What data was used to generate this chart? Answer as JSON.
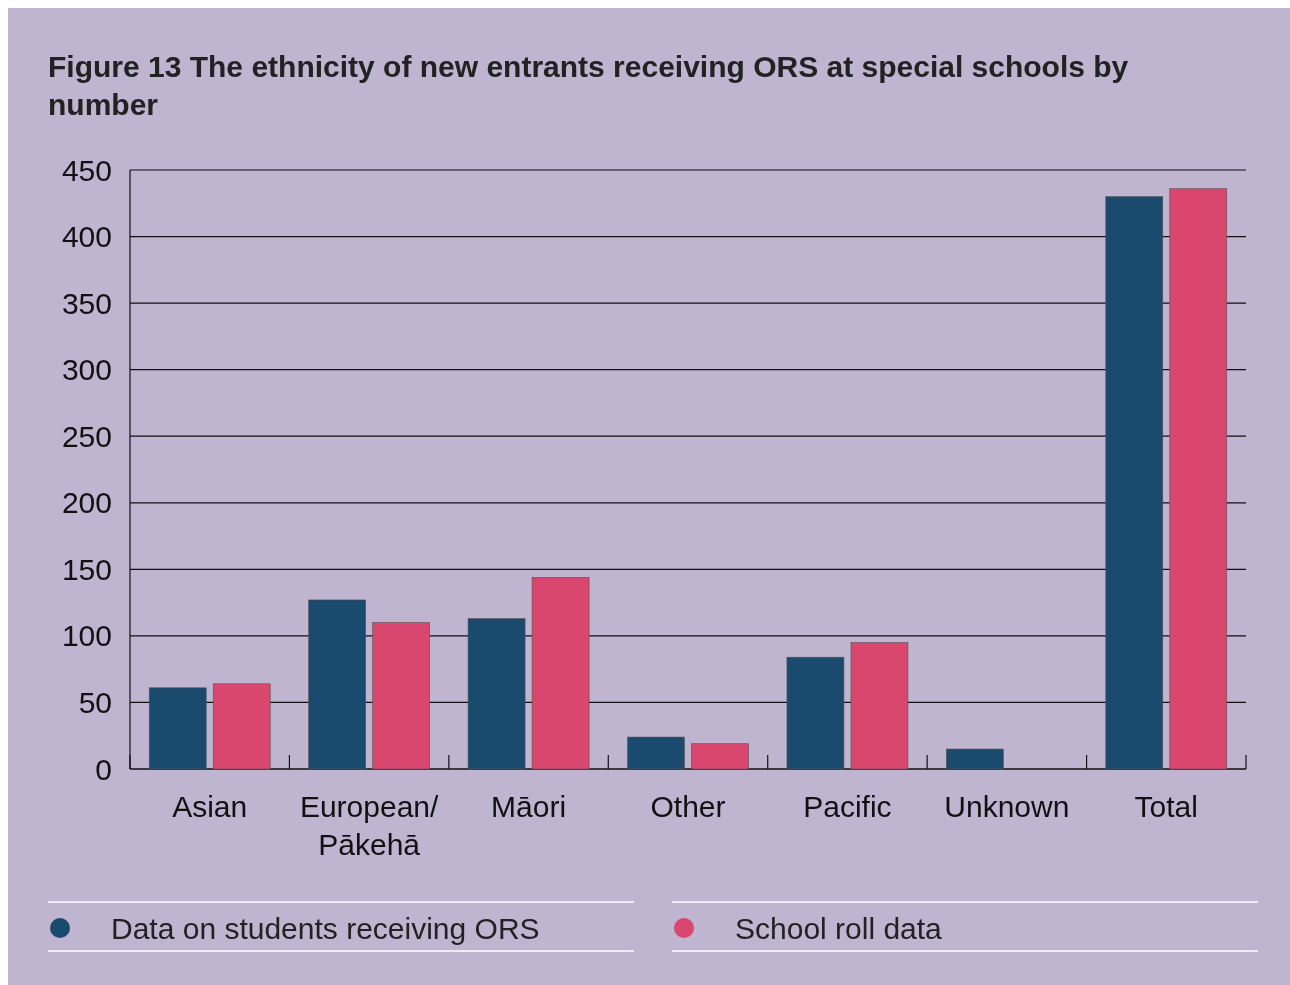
{
  "chart_data": {
    "type": "bar",
    "title": "Figure 13 The ethnicity of new entrants receiving ORS at special schools by number",
    "categories": [
      "Asian",
      "European/ Pākehā",
      "Māori",
      "Other",
      "Pacific",
      "Unknown",
      "Total"
    ],
    "series": [
      {
        "name": "Data on students receiving ORS",
        "color": "#1a4a6e",
        "values": [
          61,
          127,
          113,
          24,
          84,
          15,
          430
        ]
      },
      {
        "name": "School roll data",
        "color": "#d9476e",
        "values": [
          64,
          110,
          144,
          19,
          95,
          null,
          436
        ]
      }
    ],
    "ylim": [
      0,
      450
    ],
    "yticks": [
      0,
      50,
      100,
      150,
      200,
      250,
      300,
      350,
      400,
      450
    ],
    "grid": "y",
    "legend": "bottom"
  }
}
